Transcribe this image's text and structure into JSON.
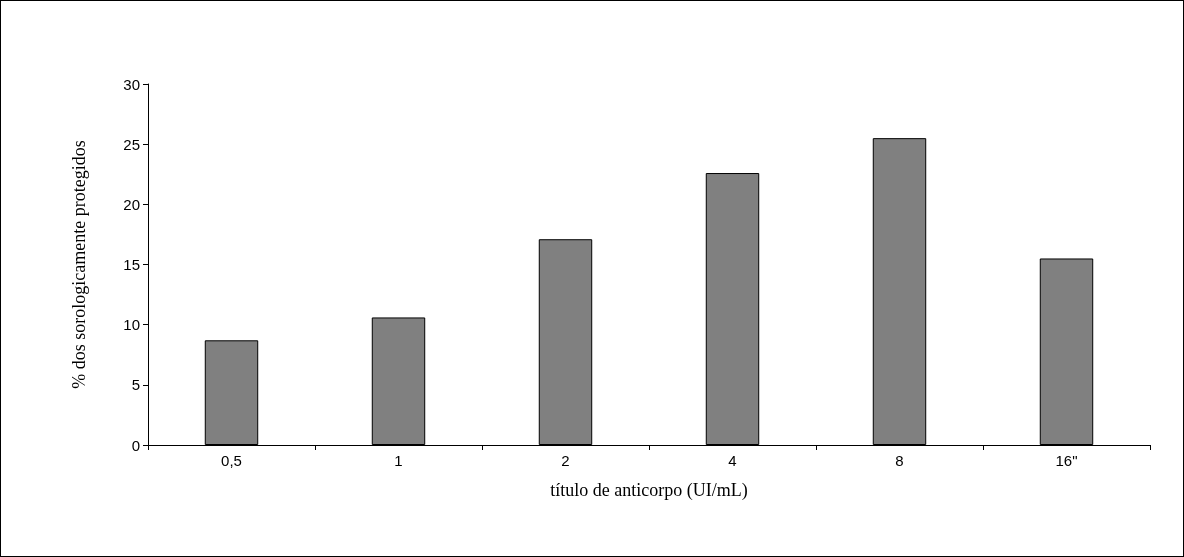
{
  "chart_data": {
    "type": "bar",
    "xlabel": "título de anticorpo (UI/mL)",
    "ylabel": "% dos sorologicamente protegidos",
    "categories": [
      "0,5",
      "1",
      "2",
      "4",
      "8",
      "16\""
    ],
    "values": [
      8.7,
      10.6,
      17.1,
      22.6,
      25.5,
      15.5
    ],
    "color": "#808080",
    "ylim": [
      0,
      30
    ],
    "yticks": [
      0,
      5,
      10,
      15,
      20,
      25,
      30
    ],
    "grid": false
  }
}
